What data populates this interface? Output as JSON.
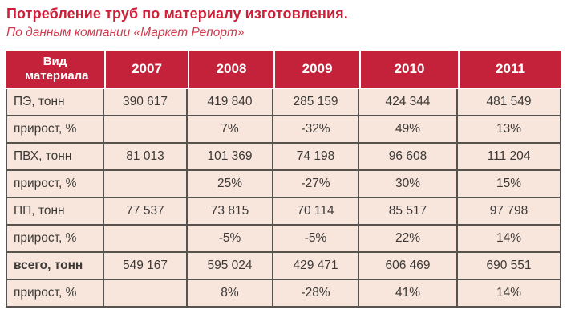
{
  "page": {
    "title": "Потребление труб по материалу изготовления.",
    "subtitle": "По данным компании «Маркет Репорт»"
  },
  "colors": {
    "header_red": "#C4223A",
    "title_red": "#CC1F38",
    "cell_pink": "#F8E5DC",
    "grid_gray": "#57534F",
    "header_divider_white": "#FFFFFF",
    "body_text": "#3C3A37"
  },
  "table": {
    "header": [
      "Вид материала",
      "2007",
      "2008",
      "2009",
      "2010",
      "2011"
    ],
    "rows": [
      {
        "label": "ПЭ, тонн",
        "bold": false,
        "values": [
          "390 617",
          "419 840",
          "285 159",
          "424 344",
          "481 549"
        ]
      },
      {
        "label": "прирост, %",
        "bold": false,
        "values": [
          "",
          "7%",
          "-32%",
          "49%",
          "13%"
        ]
      },
      {
        "label": "ПВХ, тонн",
        "bold": false,
        "values": [
          "81 013",
          "101 369",
          "74 198",
          "96 608",
          "111 204"
        ]
      },
      {
        "label": "прирост, %",
        "bold": false,
        "values": [
          "",
          "25%",
          "-27%",
          "30%",
          "15%"
        ]
      },
      {
        "label": "ПП, тонн",
        "bold": false,
        "values": [
          "77 537",
          "73 815",
          "70 114",
          "85 517",
          "97 798"
        ]
      },
      {
        "label": "прирост, %",
        "bold": false,
        "values": [
          "",
          "-5%",
          "-5%",
          "22%",
          "14%"
        ]
      },
      {
        "label": "всего, тонн",
        "bold": true,
        "values": [
          "549 167",
          "595 024",
          "429 471",
          "606 469",
          "690 551"
        ]
      },
      {
        "label": "прирост, %",
        "bold": false,
        "values": [
          "",
          "8%",
          "-28%",
          "41%",
          "14%"
        ]
      }
    ]
  },
  "chart_data": {
    "type": "table",
    "title": "Потребление труб по материалу изготовления.",
    "subtitle": "По данным компании «Маркет Репорт»",
    "x": [
      2007,
      2008,
      2009,
      2010,
      2011
    ],
    "series": [
      {
        "name": "ПЭ, тонн",
        "values": [
          390617,
          419840,
          285159,
          424344,
          481549
        ]
      },
      {
        "name": "ПЭ прирост, %",
        "values": [
          null,
          7,
          -32,
          49,
          13
        ]
      },
      {
        "name": "ПВХ, тонн",
        "values": [
          81013,
          101369,
          74198,
          96608,
          111204
        ]
      },
      {
        "name": "ПВХ прирост, %",
        "values": [
          null,
          25,
          -27,
          30,
          15
        ]
      },
      {
        "name": "ПП, тонн",
        "values": [
          77537,
          73815,
          70114,
          85517,
          97798
        ]
      },
      {
        "name": "ПП прирост, %",
        "values": [
          null,
          -5,
          -5,
          22,
          14
        ]
      },
      {
        "name": "всего, тонн",
        "values": [
          549167,
          595024,
          429471,
          606469,
          690551
        ]
      },
      {
        "name": "всего прирост, %",
        "values": [
          null,
          8,
          -28,
          41,
          14
        ]
      }
    ]
  }
}
